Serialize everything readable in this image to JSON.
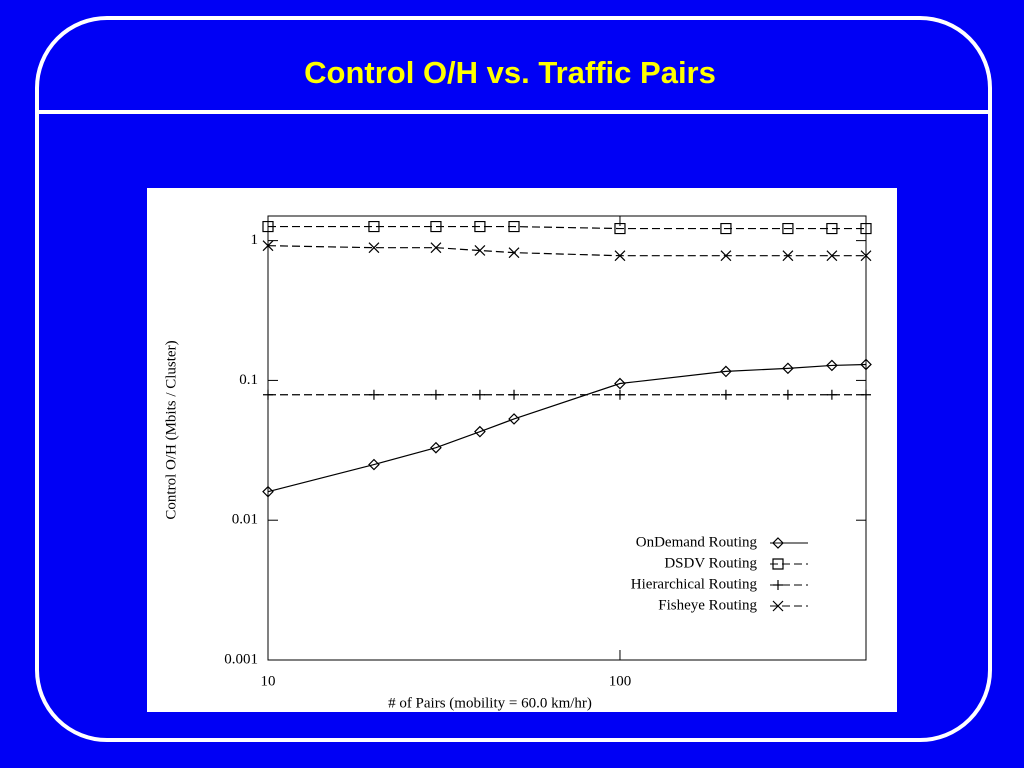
{
  "chart_data": {
    "type": "line",
    "title": "Control O/H vs. Traffic Pairs",
    "xlabel": "# of Pairs (mobility = 60.0 km/hr)",
    "ylabel": "Control O/H (Mbits / Cluster)",
    "x": [
      10,
      20,
      30,
      40,
      50,
      100,
      200,
      300,
      400,
      500
    ],
    "xscale": "log",
    "yscale": "log",
    "xlim": [
      10,
      500
    ],
    "ylim": [
      0.001,
      1.5
    ],
    "xticks": [
      10,
      100
    ],
    "yticks": [
      0.001,
      0.01,
      0.1,
      1
    ],
    "legend": "lower right",
    "series": [
      {
        "name": "OnDemand Routing",
        "color": "#000000",
        "marker": "diamond",
        "dash": "solid",
        "values": [
          0.016,
          0.025,
          0.033,
          0.043,
          0.053,
          0.095,
          0.116,
          0.122,
          0.128,
          0.13
        ]
      },
      {
        "name": "DSDV Routing",
        "color": "#000000",
        "marker": "square",
        "dash": "dashed",
        "values": [
          1.26,
          1.26,
          1.26,
          1.26,
          1.26,
          1.22,
          1.22,
          1.22,
          1.22,
          1.22
        ]
      },
      {
        "name": "Hierarchical Routing",
        "color": "#000000",
        "marker": "plus",
        "dash": "dashed",
        "values": [
          0.079,
          0.079,
          0.079,
          0.079,
          0.079,
          0.079,
          0.079,
          0.079,
          0.079,
          0.079
        ]
      },
      {
        "name": "Fisheye Routing",
        "color": "#000000",
        "marker": "x",
        "dash": "dashed",
        "values": [
          0.92,
          0.89,
          0.89,
          0.85,
          0.82,
          0.78,
          0.78,
          0.78,
          0.78,
          0.78
        ]
      }
    ]
  }
}
